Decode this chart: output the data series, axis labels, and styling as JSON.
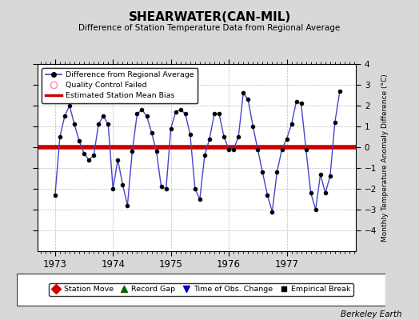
{
  "title": "SHEARWATER(CAN-MIL)",
  "subtitle": "Difference of Station Temperature Data from Regional Average",
  "ylabel": "Monthly Temperature Anomaly Difference (°C)",
  "xlabel_years": [
    1973,
    1974,
    1975,
    1976,
    1977
  ],
  "bias": 0.0,
  "ylim": [
    -5,
    4
  ],
  "yticks": [
    -4,
    -3,
    -2,
    -1,
    0,
    1,
    2,
    3,
    4
  ],
  "background_color": "#d8d8d8",
  "plot_bg_color": "#ffffff",
  "line_color": "#4444cc",
  "bias_color": "#cc0000",
  "marker_color": "#000000",
  "berkeley_earth_text": "Berkeley Earth",
  "x_values": [
    1973.0,
    1973.083,
    1973.167,
    1973.25,
    1973.333,
    1973.417,
    1973.5,
    1973.583,
    1973.667,
    1973.75,
    1973.833,
    1973.917,
    1974.0,
    1974.083,
    1974.167,
    1974.25,
    1974.333,
    1974.417,
    1974.5,
    1974.583,
    1974.667,
    1974.75,
    1974.833,
    1974.917,
    1975.0,
    1975.083,
    1975.167,
    1975.25,
    1975.333,
    1975.417,
    1975.5,
    1975.583,
    1975.667,
    1975.75,
    1975.833,
    1975.917,
    1976.0,
    1976.083,
    1976.167,
    1976.25,
    1976.333,
    1976.417,
    1976.5,
    1976.583,
    1976.667,
    1976.75,
    1976.833,
    1976.917,
    1977.0,
    1977.083,
    1977.167,
    1977.25,
    1977.333,
    1977.417,
    1977.5,
    1977.583,
    1977.667,
    1977.75,
    1977.833,
    1977.917
  ],
  "y_values": [
    -2.3,
    0.5,
    1.5,
    2.0,
    1.1,
    0.3,
    -0.3,
    -0.6,
    -0.4,
    1.1,
    1.5,
    1.1,
    -2.0,
    -0.6,
    -1.8,
    -2.8,
    -0.2,
    1.6,
    1.8,
    1.5,
    0.7,
    -0.2,
    -1.9,
    -2.0,
    0.9,
    1.7,
    1.8,
    1.6,
    0.6,
    -2.0,
    -2.5,
    -0.4,
    0.4,
    1.6,
    1.6,
    0.5,
    -0.1,
    -0.1,
    0.5,
    2.6,
    2.3,
    1.0,
    -0.1,
    -1.2,
    -2.3,
    -3.1,
    -1.2,
    -0.1,
    0.4,
    1.1,
    2.2,
    2.1,
    -0.1,
    -2.2,
    -3.0,
    -1.3,
    -2.2,
    -1.4,
    1.2,
    2.7
  ]
}
